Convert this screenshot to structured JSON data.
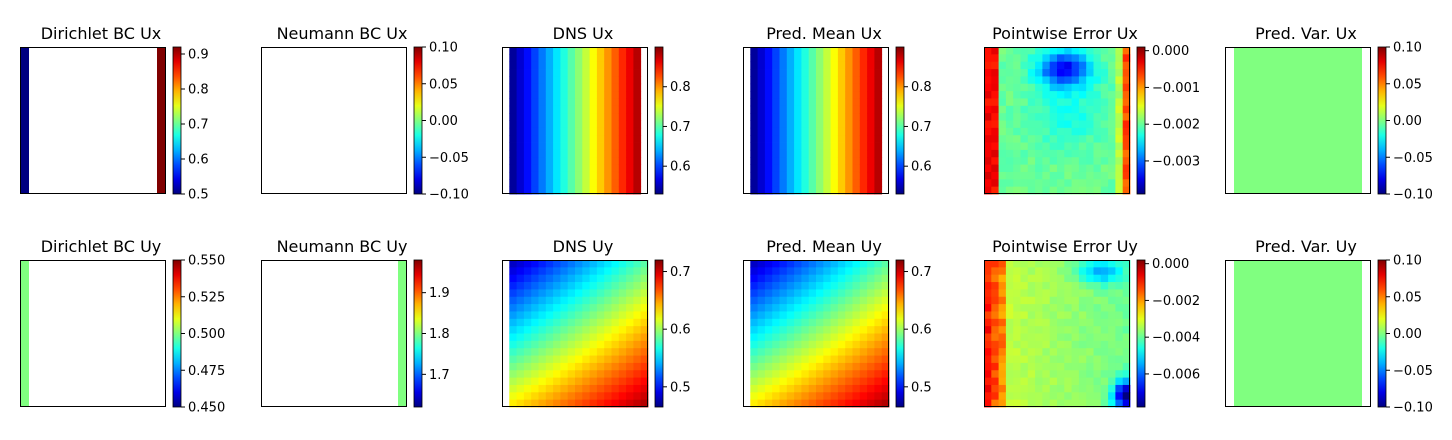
{
  "chart_data": [
    {
      "type": "heatmap",
      "title": "Dirichlet BC Ux",
      "pattern": "dirichlet_x",
      "colorbar": {
        "range": [
          0.5,
          0.92
        ],
        "ticks": [
          0.5,
          0.6,
          0.7,
          0.8,
          0.9
        ],
        "tick_labels": [
          "0.5",
          "0.6",
          "0.7",
          "0.8",
          "0.9"
        ]
      }
    },
    {
      "type": "heatmap",
      "title": "Neumann BC Ux",
      "pattern": "blank",
      "colorbar": {
        "range": [
          -0.1,
          0.1
        ],
        "ticks": [
          -0.1,
          -0.05,
          0.0,
          0.05,
          0.1
        ],
        "tick_labels": [
          "−0.10",
          "−0.05",
          "0.00",
          "0.05",
          "0.10"
        ]
      }
    },
    {
      "type": "heatmap",
      "title": "DNS Ux",
      "pattern": "gradient_x",
      "colorbar": {
        "range": [
          0.53,
          0.9
        ],
        "ticks": [
          0.6,
          0.7,
          0.8
        ],
        "tick_labels": [
          "0.6",
          "0.7",
          "0.8"
        ]
      }
    },
    {
      "type": "heatmap",
      "title": "Pred. Mean Ux",
      "pattern": "gradient_x",
      "colorbar": {
        "range": [
          0.53,
          0.9
        ],
        "ticks": [
          0.6,
          0.7,
          0.8
        ],
        "tick_labels": [
          "0.6",
          "0.7",
          "0.8"
        ]
      }
    },
    {
      "type": "heatmap",
      "title": "Pointwise Error Ux",
      "pattern": "error_x",
      "colorbar": {
        "range": [
          -0.0039,
          0.0001
        ],
        "ticks": [
          0.0,
          -0.001,
          -0.002,
          -0.003
        ],
        "tick_labels": [
          "0.000",
          "−0.001",
          "−0.002",
          "−0.003"
        ]
      }
    },
    {
      "type": "heatmap",
      "title": "Pred. Var. Ux",
      "pattern": "uniform",
      "colorbar": {
        "range": [
          -0.1,
          0.1
        ],
        "ticks": [
          -0.1,
          -0.05,
          0.0,
          0.05,
          0.1
        ],
        "tick_labels": [
          "−0.10",
          "−0.05",
          "0.00",
          "0.05",
          "0.10"
        ]
      }
    },
    {
      "type": "heatmap",
      "title": "Dirichlet BC Uy",
      "pattern": "dirichlet_y",
      "colorbar": {
        "range": [
          0.45,
          0.55
        ],
        "ticks": [
          0.45,
          0.475,
          0.5,
          0.525,
          0.55
        ],
        "tick_labels": [
          "0.450",
          "0.475",
          "0.500",
          "0.525",
          "0.550"
        ]
      }
    },
    {
      "type": "heatmap",
      "title": "Neumann BC Uy",
      "pattern": "neumann_y",
      "colorbar": {
        "range": [
          1.62,
          1.98
        ],
        "ticks": [
          1.7,
          1.8,
          1.9
        ],
        "tick_labels": [
          "1.7",
          "1.8",
          "1.9"
        ]
      }
    },
    {
      "type": "heatmap",
      "title": "DNS Uy",
      "pattern": "diag_y",
      "colorbar": {
        "range": [
          0.465,
          0.72
        ],
        "ticks": [
          0.5,
          0.6,
          0.7
        ],
        "tick_labels": [
          "0.5",
          "0.6",
          "0.7"
        ]
      }
    },
    {
      "type": "heatmap",
      "title": "Pred. Mean Uy",
      "pattern": "diag_y",
      "colorbar": {
        "range": [
          0.465,
          0.72
        ],
        "ticks": [
          0.5,
          0.6,
          0.7
        ],
        "tick_labels": [
          "0.5",
          "0.6",
          "0.7"
        ]
      }
    },
    {
      "type": "heatmap",
      "title": "Pointwise Error Uy",
      "pattern": "error_y",
      "colorbar": {
        "range": [
          -0.0078,
          0.0002
        ],
        "ticks": [
          0.0,
          -0.002,
          -0.004,
          -0.006
        ],
        "tick_labels": [
          "0.000",
          "−0.002",
          "−0.004",
          "−0.006"
        ]
      }
    },
    {
      "type": "heatmap",
      "title": "Pred. Var. Uy",
      "pattern": "uniform",
      "colorbar": {
        "range": [
          -0.1,
          0.1
        ],
        "ticks": [
          -0.1,
          -0.05,
          0.0,
          0.05,
          0.1
        ],
        "tick_labels": [
          "−0.10",
          "−0.05",
          "0.00",
          "0.05",
          "0.10"
        ]
      }
    }
  ],
  "colormap": "jet",
  "grid_on": false
}
